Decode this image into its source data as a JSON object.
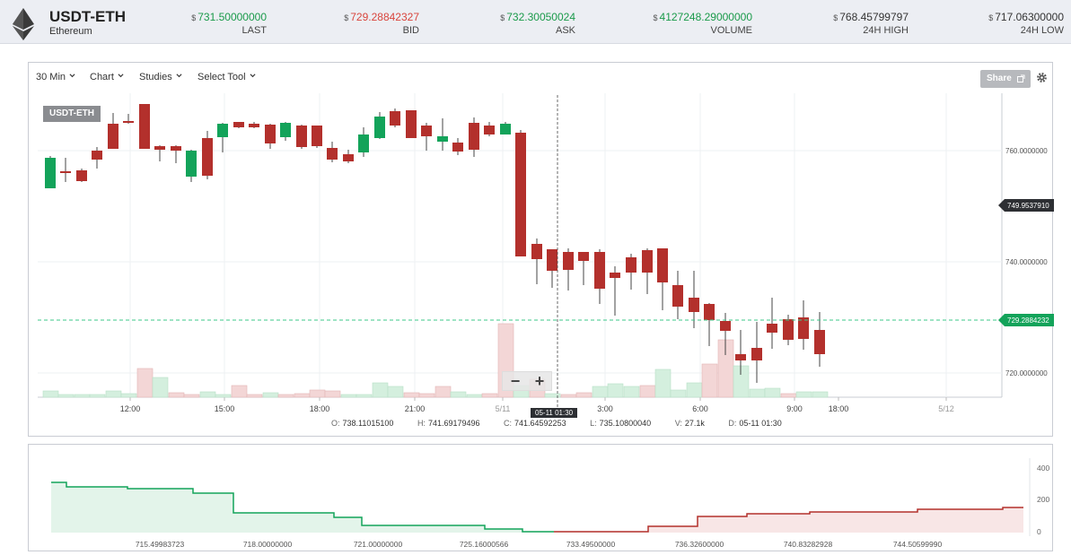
{
  "header": {
    "symbol": "USDT-ETH",
    "name": "Ethereum",
    "currency_symbol": "$",
    "stats": [
      {
        "value": "731.50000000",
        "label": "LAST",
        "color": "#1a9a4a"
      },
      {
        "value": "729.28842327",
        "label": "BID",
        "color": "#d9453d"
      },
      {
        "value": "732.30050024",
        "label": "ASK",
        "color": "#1a9a4a"
      },
      {
        "value": "4127248.29000000",
        "label": "VOLUME",
        "color": "#1a9a4a"
      },
      {
        "value": "768.45799797",
        "label": "24H HIGH",
        "color": "#333333"
      },
      {
        "value": "717.06300000",
        "label": "24H LOW",
        "color": "#333333"
      }
    ]
  },
  "toolbar": {
    "interval": "30 Min",
    "chart": "Chart",
    "studies": "Studies",
    "select_tool": "Select Tool",
    "share": "Share"
  },
  "chart": {
    "symbol_tag": "USDT-ETH",
    "price_axis": [
      "760.0000000",
      "740.0000000",
      "720.0000000"
    ],
    "current_price_tag": "749.9537910",
    "bid_tag": "729.2884232",
    "time_axis": [
      "12:00",
      "15:00",
      "18:00",
      "21:00",
      "5/11",
      "3:00",
      "6:00",
      "9:00",
      "18:00",
      "5/12"
    ],
    "cross_time": "05-11 01:30",
    "zoom_out": "−",
    "zoom_in": "+",
    "ohlc": {
      "o_label": "O:",
      "o": "738.11015100",
      "h_label": "H:",
      "h": "741.69179496",
      "c_label": "C:",
      "c": "741.64592253",
      "l_label": "L:",
      "l": "735.10800040",
      "v_label": "V:",
      "v": "27.1k",
      "d_label": "D:",
      "d": "05-11 01:30"
    },
    "colors": {
      "up": "#13a35a",
      "down": "#b3302c",
      "up_vol": "#d4efde",
      "down_vol": "#f3d6d6"
    }
  },
  "depth": {
    "y_axis": [
      "400",
      "200",
      "0"
    ],
    "x_axis": [
      "715.49983723",
      "718.00000000",
      "721.00000000",
      "725.16000566",
      "733.49500000",
      "736.32600000",
      "740.83282928",
      "744.50599990"
    ],
    "colors": {
      "bid": "#13a35a",
      "ask": "#b3302c"
    }
  }
}
